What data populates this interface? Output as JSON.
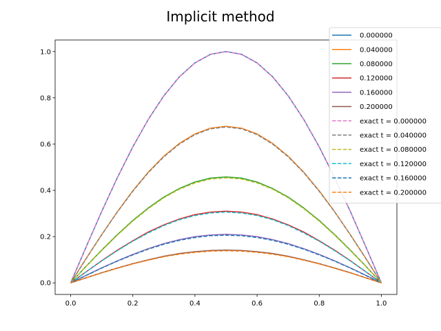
{
  "chart_data": {
    "type": "line",
    "title": "Implicit method",
    "xlabel": "",
    "ylabel": "",
    "xlim": [
      -0.05,
      1.05
    ],
    "ylim": [
      -0.05,
      1.05
    ],
    "x_ticks": [
      0.0,
      0.2,
      0.4,
      0.6,
      0.8,
      1.0
    ],
    "y_ticks": [
      0.0,
      0.2,
      0.4,
      0.6,
      0.8,
      1.0
    ],
    "x_tick_labels": [
      "0.0",
      "0.2",
      "0.4",
      "0.6",
      "0.8",
      "1.0"
    ],
    "y_tick_labels": [
      "0.0",
      "0.2",
      "0.4",
      "0.6",
      "0.8",
      "1.0"
    ],
    "grid": false,
    "legend_position": "top-right",
    "x": [
      0.0,
      0.05,
      0.1,
      0.15,
      0.2,
      0.25,
      0.3,
      0.35,
      0.4,
      0.45,
      0.5,
      0.55,
      0.6,
      0.65,
      0.7,
      0.75,
      0.8,
      0.85,
      0.9,
      0.95,
      1.0
    ],
    "series": [
      {
        "name": "0.000000",
        "style": "solid",
        "color": "#1f77b4",
        "values": [
          0.0,
          0.156,
          0.309,
          0.454,
          0.588,
          0.707,
          0.809,
          0.891,
          0.951,
          0.988,
          1.0,
          0.988,
          0.951,
          0.891,
          0.809,
          0.707,
          0.588,
          0.454,
          0.309,
          0.156,
          0.0
        ]
      },
      {
        "name": "0.040000",
        "style": "solid",
        "color": "#ff7f0e",
        "values": [
          0.0,
          0.106,
          0.209,
          0.307,
          0.398,
          0.479,
          0.548,
          0.603,
          0.644,
          0.669,
          0.677,
          0.669,
          0.644,
          0.603,
          0.548,
          0.479,
          0.398,
          0.307,
          0.209,
          0.106,
          0.0
        ]
      },
      {
        "name": "0.080000",
        "style": "solid",
        "color": "#2ca02c",
        "values": [
          0.0,
          0.072,
          0.142,
          0.208,
          0.27,
          0.324,
          0.371,
          0.408,
          0.436,
          0.453,
          0.458,
          0.453,
          0.436,
          0.408,
          0.371,
          0.324,
          0.27,
          0.208,
          0.142,
          0.072,
          0.0
        ]
      },
      {
        "name": "0.120000",
        "style": "solid",
        "color": "#d62728",
        "values": [
          0.0,
          0.048,
          0.096,
          0.141,
          0.182,
          0.22,
          0.251,
          0.276,
          0.295,
          0.306,
          0.31,
          0.306,
          0.295,
          0.276,
          0.251,
          0.22,
          0.182,
          0.141,
          0.096,
          0.048,
          0.0
        ]
      },
      {
        "name": "0.160000",
        "style": "solid",
        "color": "#9467bd",
        "values": [
          0.0,
          0.033,
          0.065,
          0.095,
          0.123,
          0.148,
          0.17,
          0.187,
          0.2,
          0.207,
          0.21,
          0.207,
          0.2,
          0.187,
          0.17,
          0.148,
          0.123,
          0.095,
          0.065,
          0.033,
          0.0
        ]
      },
      {
        "name": "0.200000",
        "style": "solid",
        "color": "#8c564b",
        "values": [
          0.0,
          0.022,
          0.044,
          0.064,
          0.083,
          0.1,
          0.115,
          0.127,
          0.135,
          0.14,
          0.142,
          0.14,
          0.135,
          0.127,
          0.115,
          0.1,
          0.083,
          0.064,
          0.044,
          0.022,
          0.0
        ]
      },
      {
        "name": "exact t = 0.000000",
        "style": "dashed",
        "color": "#e377c2",
        "values": [
          0.0,
          0.156,
          0.309,
          0.454,
          0.588,
          0.707,
          0.809,
          0.891,
          0.951,
          0.988,
          1.0,
          0.988,
          0.951,
          0.891,
          0.809,
          0.707,
          0.588,
          0.454,
          0.309,
          0.156,
          0.0
        ]
      },
      {
        "name": "exact t = 0.040000",
        "style": "dashed",
        "color": "#7f7f7f",
        "values": [
          0.0,
          0.105,
          0.208,
          0.306,
          0.396,
          0.477,
          0.545,
          0.6,
          0.641,
          0.666,
          0.674,
          0.666,
          0.641,
          0.6,
          0.545,
          0.477,
          0.396,
          0.306,
          0.208,
          0.105,
          0.0
        ]
      },
      {
        "name": "exact t = 0.080000",
        "style": "dashed",
        "color": "#bcbd22",
        "values": [
          0.0,
          0.071,
          0.14,
          0.206,
          0.267,
          0.321,
          0.368,
          0.405,
          0.432,
          0.449,
          0.454,
          0.449,
          0.432,
          0.405,
          0.368,
          0.321,
          0.267,
          0.206,
          0.14,
          0.071,
          0.0
        ]
      },
      {
        "name": "exact t = 0.120000",
        "style": "dashed",
        "color": "#17becf",
        "values": [
          0.0,
          0.048,
          0.095,
          0.139,
          0.18,
          0.216,
          0.248,
          0.273,
          0.291,
          0.302,
          0.306,
          0.302,
          0.291,
          0.273,
          0.248,
          0.216,
          0.18,
          0.139,
          0.095,
          0.048,
          0.0
        ]
      },
      {
        "name": "exact t = 0.160000",
        "style": "dashed",
        "color": "#1f77b4",
        "values": [
          0.0,
          0.032,
          0.064,
          0.094,
          0.121,
          0.146,
          0.167,
          0.184,
          0.196,
          0.204,
          0.206,
          0.204,
          0.196,
          0.184,
          0.167,
          0.146,
          0.121,
          0.094,
          0.064,
          0.032,
          0.0
        ]
      },
      {
        "name": "exact t = 0.200000",
        "style": "dashed",
        "color": "#ff7f0e",
        "values": [
          0.0,
          0.022,
          0.043,
          0.063,
          0.082,
          0.098,
          0.113,
          0.124,
          0.132,
          0.137,
          0.139,
          0.137,
          0.132,
          0.124,
          0.113,
          0.098,
          0.082,
          0.063,
          0.043,
          0.022,
          0.0
        ]
      }
    ]
  }
}
